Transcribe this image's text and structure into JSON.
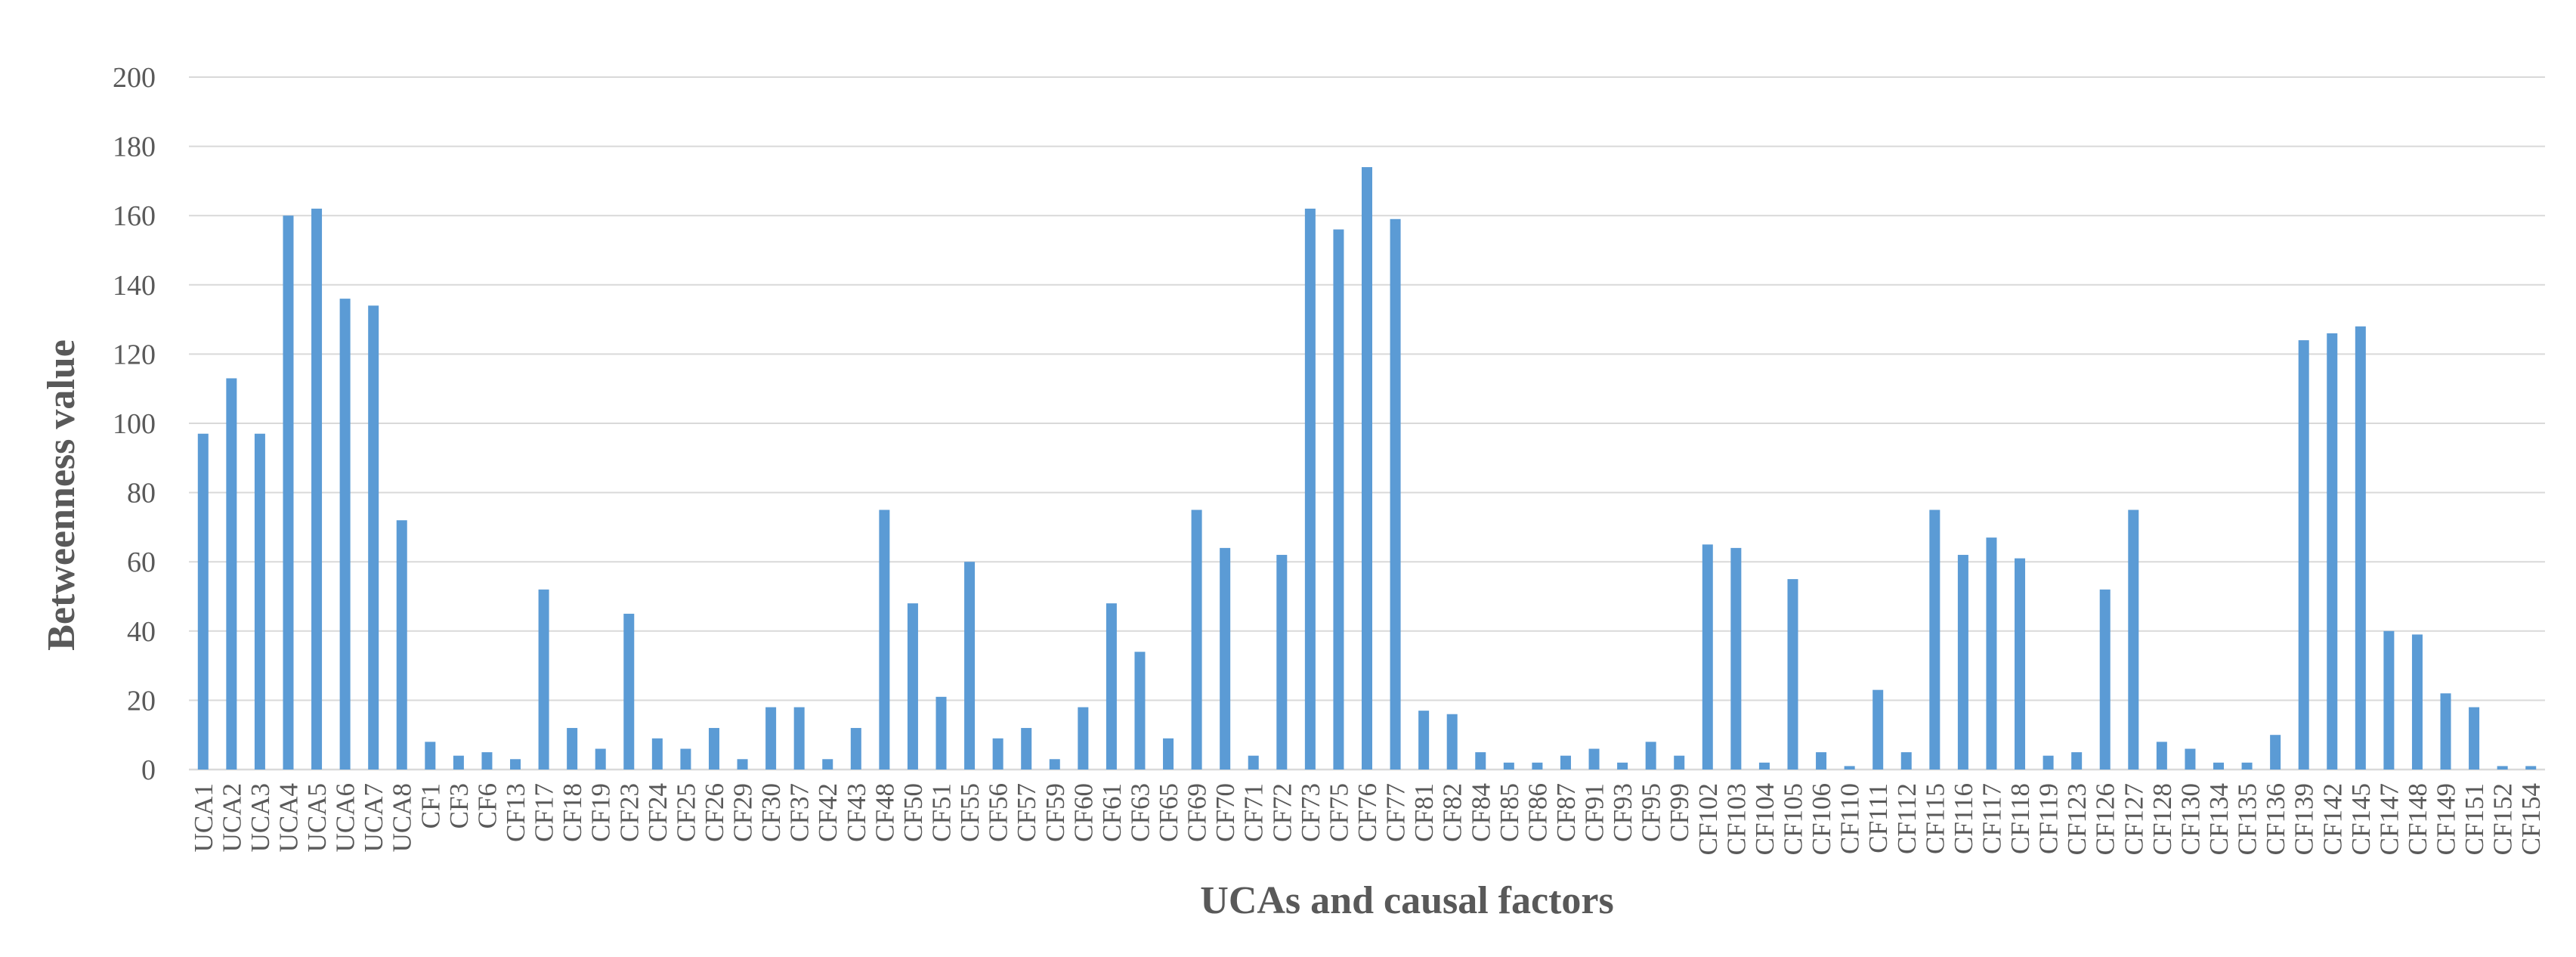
{
  "chart_data": {
    "type": "bar",
    "title": "",
    "xlabel": "UCAs and causal factors",
    "ylabel": "Betweenness value",
    "ylim": [
      0,
      200
    ],
    "yticks": [
      0,
      20,
      40,
      60,
      80,
      100,
      120,
      140,
      160,
      180,
      200
    ],
    "grid": "horizontal",
    "legend": "none",
    "bar_color": "#5B9BD5",
    "grid_color": "#D9D9D9",
    "text_color": "#595959",
    "categories": [
      "UCA1",
      "UCA2",
      "UCA3",
      "UCA4",
      "UCA5",
      "UCA6",
      "UCA7",
      "UCA8",
      "CF1",
      "CF3",
      "CF6",
      "CF13",
      "CF17",
      "CF18",
      "CF19",
      "CF23",
      "CF24",
      "CF25",
      "CF26",
      "CF29",
      "CF30",
      "CF37",
      "CF42",
      "CF43",
      "CF48",
      "CF50",
      "CF51",
      "CF55",
      "CF56",
      "CF57",
      "CF59",
      "CF60",
      "CF61",
      "CF63",
      "CF65",
      "CF69",
      "CF70",
      "CF71",
      "CF72",
      "CF73",
      "CF75",
      "CF76",
      "CF77",
      "CF81",
      "CF82",
      "CF84",
      "CF85",
      "CF86",
      "CF87",
      "CF91",
      "CF93",
      "CF95",
      "CF99",
      "CF102",
      "CF103",
      "CF104",
      "CF105",
      "CF106",
      "CF110",
      "CF111",
      "CF112",
      "CF115",
      "CF116",
      "CF117",
      "CF118",
      "CF119",
      "CF123",
      "CF126",
      "CF127",
      "CF128",
      "CF130",
      "CF134",
      "CF135",
      "CF136",
      "CF139",
      "CF142",
      "CF145",
      "CF147",
      "CF148",
      "CF149",
      "CF151",
      "CF152",
      "CF154"
    ],
    "values": [
      97,
      113,
      97,
      160,
      162,
      136,
      134,
      72,
      8,
      4,
      5,
      3,
      52,
      12,
      6,
      45,
      9,
      6,
      12,
      3,
      18,
      18,
      3,
      12,
      75,
      48,
      21,
      60,
      9,
      12,
      3,
      18,
      48,
      34,
      9,
      75,
      64,
      4,
      62,
      162,
      156,
      174,
      159,
      17,
      16,
      5,
      2,
      2,
      4,
      6,
      2,
      8,
      4,
      65,
      64,
      2,
      55,
      5,
      1,
      23,
      5,
      75,
      62,
      67,
      61,
      4,
      5,
      52,
      75,
      8,
      6,
      2,
      2,
      10,
      124,
      126,
      128,
      40,
      39,
      22,
      18,
      1,
      1
    ]
  }
}
